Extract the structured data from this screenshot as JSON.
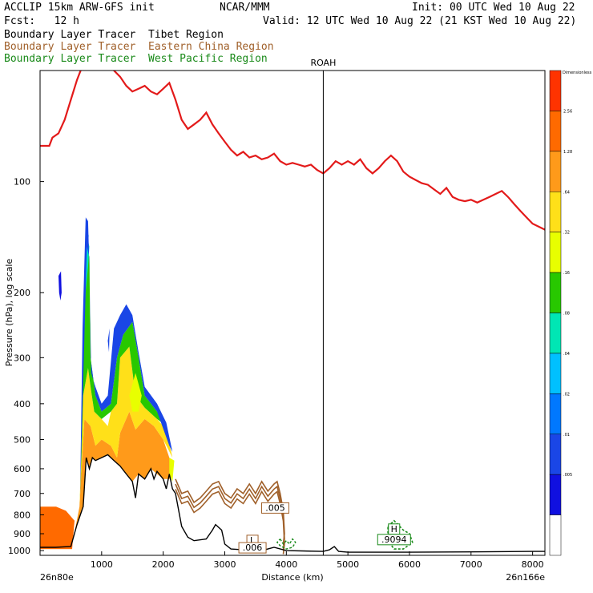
{
  "header": {
    "title_left": "ACCLIP 15km ARW-GFS init",
    "org": "NCAR/MMM",
    "init": "Init: 00 UTC Wed 10 Aug 22",
    "fcst": "Fcst:   12 h",
    "valid": "Valid: 12 UTC Wed 10 Aug 22 (21 KST Wed 10 Aug 22)",
    "legend": [
      {
        "label": "Boundary Layer Tracer  Tibet Region",
        "color": "#000000"
      },
      {
        "label": "Boundary Layer Tracer  Eastern China Region",
        "color": "#a0602a"
      },
      {
        "label": "Boundary Layer Tracer  West Pacific Region",
        "color": "#1a8a1a"
      }
    ]
  },
  "chart_data": {
    "type": "area",
    "xlabel": "Distance (km)",
    "ylabel": "Pressure (hPa), log scale",
    "x_ticks": [
      "1000",
      "2000",
      "3000",
      "4000",
      "5000",
      "6000",
      "7000",
      "8000"
    ],
    "x_tick_values": [
      1000,
      2000,
      3000,
      4000,
      5000,
      6000,
      7000,
      8000
    ],
    "x_end_labels": {
      "left": "26n80e",
      "right": "26n166e"
    },
    "y_scale": "log",
    "y_ticks": [
      "100",
      "200",
      "300",
      "400",
      "500",
      "600",
      "700",
      "800",
      "900",
      "1000"
    ],
    "y_tick_values": [
      100,
      200,
      300,
      400,
      500,
      600,
      700,
      800,
      900,
      1000
    ],
    "xlim": [
      0,
      8200
    ],
    "ylim": [
      1030,
      50
    ],
    "vertical_marker": {
      "label": "ROAH",
      "x": 4600
    },
    "colorbar": {
      "top_label": "Dimensionless",
      "levels": [
        "2.56",
        "1.28",
        ".64",
        ".32",
        ".16",
        ".08",
        ".04",
        ".02",
        ".01",
        ".005"
      ],
      "colors": [
        "#ff3300",
        "#ff6a00",
        "#ff9a1a",
        "#ffe019",
        "#e8ff00",
        "#28c800",
        "#00e6b4",
        "#00c0ff",
        "#0078ff",
        "#1a46e6",
        "#1010e0",
        "#ffffff"
      ]
    },
    "annotations": [
      {
        "text": ".005",
        "x": 3820,
        "p": 780,
        "color": "#a0602a"
      },
      {
        "text": "L",
        "x": 3450,
        "p": 955,
        "color": "#a0602a"
      },
      {
        "text": ".006",
        "x": 3450,
        "p": 1000,
        "color": "#a0602a"
      },
      {
        "text": "H",
        "x": 5750,
        "p": 890,
        "color": "#1a8a1a"
      },
      {
        "text": ".9094",
        "x": 5750,
        "p": 950,
        "color": "#1a8a1a"
      }
    ],
    "series": [
      {
        "name": "Boundary Layer Tracer  Tibet Region",
        "kind": "line",
        "color": "#000000",
        "points": [
          [
            0,
            980
          ],
          [
            250,
            980
          ],
          [
            500,
            975
          ],
          [
            600,
            850
          ],
          [
            700,
            760
          ],
          [
            750,
            560
          ],
          [
            800,
            600
          ],
          [
            850,
            560
          ],
          [
            900,
            570
          ],
          [
            1000,
            560
          ],
          [
            1100,
            550
          ],
          [
            1200,
            570
          ],
          [
            1300,
            590
          ],
          [
            1400,
            620
          ],
          [
            1500,
            650
          ],
          [
            1550,
            720
          ],
          [
            1600,
            620
          ],
          [
            1700,
            640
          ],
          [
            1800,
            600
          ],
          [
            1850,
            640
          ],
          [
            1900,
            610
          ],
          [
            2000,
            640
          ],
          [
            2050,
            680
          ],
          [
            2100,
            620
          ],
          [
            2150,
            680
          ],
          [
            2200,
            700
          ],
          [
            2300,
            860
          ],
          [
            2400,
            920
          ],
          [
            2500,
            940
          ],
          [
            2700,
            930
          ],
          [
            2800,
            880
          ],
          [
            2850,
            850
          ],
          [
            2950,
            880
          ],
          [
            3000,
            960
          ],
          [
            3100,
            990
          ],
          [
            3300,
            995
          ],
          [
            3500,
            990
          ],
          [
            3600,
            1000
          ],
          [
            3800,
            980
          ],
          [
            4000,
            1000
          ],
          [
            4600,
            1005
          ],
          [
            4700,
            995
          ],
          [
            4780,
            975
          ],
          [
            4850,
            1005
          ],
          [
            5000,
            1010
          ],
          [
            6000,
            1010
          ],
          [
            7000,
            1008
          ],
          [
            8000,
            1005
          ],
          [
            8200,
            1005
          ]
        ]
      },
      {
        "name": "Boundary Layer Tracer  West Pacific Region",
        "kind": "line",
        "color": "#1a8a1a",
        "points": [
          [
            3900,
            930
          ],
          [
            3950,
            960
          ],
          [
            4000,
            940
          ],
          [
            4050,
            960
          ],
          [
            4100,
            930
          ],
          [
            4150,
            950
          ],
          [
            4100,
            980
          ],
          [
            4000,
            990
          ],
          [
            3900,
            970
          ],
          [
            3850,
            950
          ],
          [
            3900,
            930
          ]
        ]
      },
      {
        "name": "",
        "kind": "line",
        "color": "#e31a1a",
        "points": [
          [
            0,
            80
          ],
          [
            150,
            80
          ],
          [
            200,
            76
          ],
          [
            300,
            74
          ],
          [
            400,
            68
          ],
          [
            500,
            60
          ],
          [
            600,
            53
          ],
          [
            700,
            48
          ],
          [
            800,
            46
          ],
          [
            900,
            48
          ],
          [
            1000,
            47
          ],
          [
            1100,
            48
          ],
          [
            1200,
            50
          ],
          [
            1300,
            52
          ],
          [
            1400,
            55
          ],
          [
            1500,
            57
          ],
          [
            1600,
            56
          ],
          [
            1700,
            55
          ],
          [
            1800,
            57
          ],
          [
            1900,
            58
          ],
          [
            2000,
            56
          ],
          [
            2100,
            54
          ],
          [
            2200,
            60
          ],
          [
            2300,
            68
          ],
          [
            2400,
            72
          ],
          [
            2500,
            70
          ],
          [
            2600,
            68
          ],
          [
            2700,
            65
          ],
          [
            2800,
            70
          ],
          [
            2900,
            74
          ],
          [
            3000,
            78
          ],
          [
            3100,
            82
          ],
          [
            3200,
            85
          ],
          [
            3300,
            83
          ],
          [
            3400,
            86
          ],
          [
            3500,
            85
          ],
          [
            3600,
            87
          ],
          [
            3700,
            86
          ],
          [
            3800,
            84
          ],
          [
            3900,
            88
          ],
          [
            4000,
            90
          ],
          [
            4100,
            89
          ],
          [
            4200,
            90
          ],
          [
            4300,
            91
          ],
          [
            4400,
            90
          ],
          [
            4500,
            93
          ],
          [
            4600,
            95
          ],
          [
            4700,
            92
          ],
          [
            4800,
            88
          ],
          [
            4900,
            90
          ],
          [
            5000,
            88
          ],
          [
            5100,
            90
          ],
          [
            5200,
            87
          ],
          [
            5300,
            92
          ],
          [
            5400,
            95
          ],
          [
            5500,
            92
          ],
          [
            5600,
            88
          ],
          [
            5700,
            85
          ],
          [
            5800,
            88
          ],
          [
            5900,
            94
          ],
          [
            6000,
            97
          ],
          [
            6100,
            99
          ],
          [
            6200,
            101
          ],
          [
            6300,
            102
          ],
          [
            6400,
            105
          ],
          [
            6500,
            108
          ],
          [
            6600,
            104
          ],
          [
            6700,
            110
          ],
          [
            6800,
            112
          ],
          [
            6900,
            113
          ],
          [
            7000,
            112
          ],
          [
            7100,
            114
          ],
          [
            7200,
            112
          ],
          [
            7300,
            110
          ],
          [
            7400,
            108
          ],
          [
            7500,
            106
          ],
          [
            7600,
            110
          ],
          [
            7700,
            115
          ],
          [
            7800,
            120
          ],
          [
            7900,
            125
          ],
          [
            8000,
            130
          ],
          [
            8200,
            135
          ]
        ]
      }
    ]
  }
}
